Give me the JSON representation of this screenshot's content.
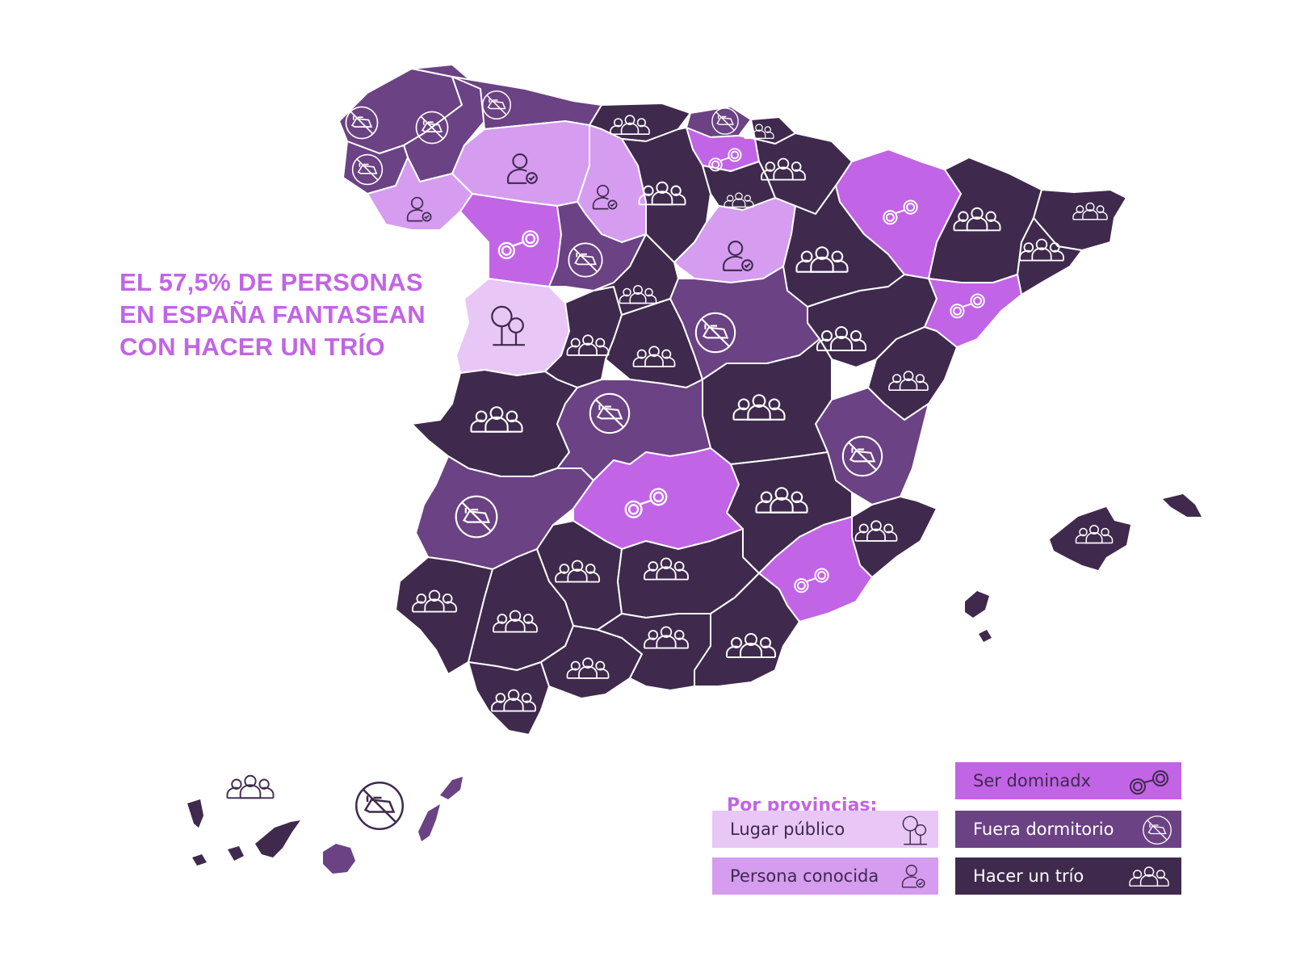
{
  "headline": {
    "line1": "EL 57,5% DE PERSONAS",
    "line2": "EN ESPAÑA FANTASEAN",
    "line3": "CON HACER UN TRÍO"
  },
  "legend": {
    "title": "Por provincias:",
    "items": [
      {
        "label": "Lugar público",
        "icon": "tree-icon",
        "color": "#e8c6f5",
        "text_color": "#3d2a4d"
      },
      {
        "label": "Persona conocida",
        "icon": "person-check-icon",
        "color": "#d59cf0",
        "text_color": "#3d2a4d"
      },
      {
        "label": "Ser dominadx",
        "icon": "handcuffs-icon",
        "color": "#c264e6",
        "text_color": "#3d2a4d"
      },
      {
        "label": "Fuera dormitorio",
        "icon": "no-bed-icon",
        "color": "#6b4283",
        "text_color": "#ffffff"
      },
      {
        "label": "Hacer un trío",
        "icon": "group-icon",
        "color": "#3f2a4d",
        "text_color": "#ffffff"
      }
    ]
  },
  "colors": {
    "lugar_publico": "#e8c6f5",
    "persona_conocida": "#d59cf0",
    "ser_dominadx": "#c264e6",
    "fuera_dormitorio": "#6b4283",
    "hacer_un_trio": "#3f2a4d",
    "headline": "#c264e6",
    "border": "#ffffff"
  }
}
